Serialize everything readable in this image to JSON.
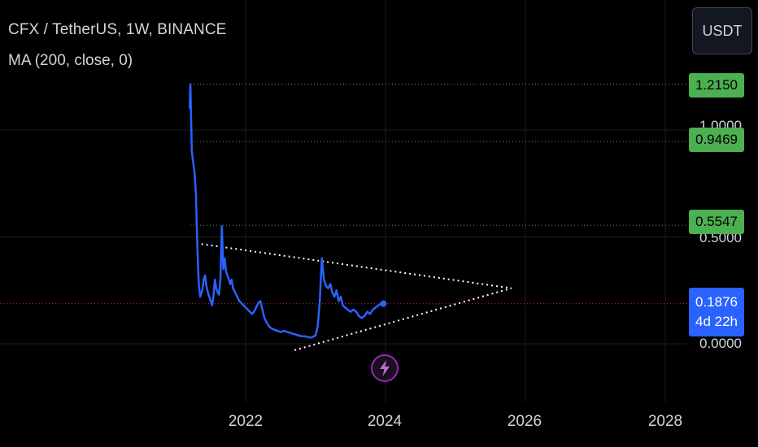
{
  "header": {
    "symbol_title": "CFX / TetherUS, 1W, BINANCE",
    "indicator": "MA (200, close, 0)"
  },
  "currency_button": {
    "label": "USDT"
  },
  "price_scale": {
    "levels": [
      "1.2150",
      "0.9469",
      "0.5547"
    ],
    "current_price": "0.1876",
    "countdown": "4d 22h",
    "partial_labels": [
      "1.0000",
      "0.5000",
      "0.0000"
    ]
  },
  "time_axis": {
    "labels": [
      "2022",
      "2024",
      "2026",
      "2028"
    ]
  },
  "colors": {
    "price_line": "#2962ff",
    "level_green": "#4caf50",
    "current_pink": "#e91e63",
    "trendline": "#ffffff",
    "flash_icon": "#9c27b0"
  },
  "icons": {
    "flash_badge": "lightning-icon"
  },
  "chart_data": {
    "type": "line",
    "title": "CFX / TetherUS, 1W, BINANCE",
    "xlabel": "",
    "ylabel": "",
    "x_ticks": [
      "2022",
      "2024",
      "2026",
      "2028"
    ],
    "series": [
      {
        "name": "CFX / TetherUS",
        "x": [
          2021.2,
          2021.21,
          2021.23,
          2021.25,
          2021.27,
          2021.29,
          2021.31,
          2021.33,
          2021.35,
          2021.38,
          2021.4,
          2021.42,
          2021.44,
          2021.46,
          2021.48,
          2021.5,
          2021.52,
          2021.54,
          2021.56,
          2021.58,
          2021.6,
          2021.62,
          2021.64,
          2021.66,
          2021.68,
          2021.7,
          2021.72,
          2021.74,
          2021.76,
          2021.78,
          2021.8,
          2021.82,
          2021.85,
          2021.88,
          2021.91,
          2021.94,
          2021.97,
          2022.0,
          2022.03,
          2022.06,
          2022.09,
          2022.12,
          2022.15,
          2022.18,
          2022.21,
          2022.24,
          2022.27,
          2022.3,
          2022.34,
          2022.38,
          2022.42,
          2022.46,
          2022.5,
          2022.55,
          2022.6,
          2022.65,
          2022.7,
          2022.75,
          2022.8,
          2022.85,
          2022.9,
          2022.95,
          2023.0,
          2023.03,
          2023.06,
          2023.09,
          2023.12,
          2023.15,
          2023.18,
          2023.21,
          2023.24,
          2023.27,
          2023.3,
          2023.33,
          2023.36,
          2023.39,
          2023.42,
          2023.46,
          2023.5,
          2023.54,
          2023.58,
          2023.62,
          2023.66,
          2023.7,
          2023.74,
          2023.78,
          2023.82,
          2023.86,
          2023.9,
          2023.94,
          2023.97
        ],
        "values": [
          1.1,
          1.215,
          0.9,
          0.85,
          0.8,
          0.7,
          0.45,
          0.28,
          0.22,
          0.25,
          0.3,
          0.32,
          0.27,
          0.24,
          0.22,
          0.2,
          0.18,
          0.22,
          0.3,
          0.26,
          0.24,
          0.23,
          0.3,
          0.55,
          0.35,
          0.4,
          0.34,
          0.32,
          0.3,
          0.28,
          0.3,
          0.26,
          0.24,
          0.22,
          0.2,
          0.19,
          0.18,
          0.17,
          0.16,
          0.15,
          0.14,
          0.15,
          0.17,
          0.19,
          0.2,
          0.16,
          0.12,
          0.1,
          0.08,
          0.07,
          0.065,
          0.06,
          0.055,
          0.06,
          0.055,
          0.05,
          0.045,
          0.04,
          0.035,
          0.035,
          0.03,
          0.03,
          0.04,
          0.08,
          0.2,
          0.4,
          0.3,
          0.27,
          0.26,
          0.28,
          0.24,
          0.22,
          0.25,
          0.2,
          0.22,
          0.18,
          0.17,
          0.16,
          0.15,
          0.16,
          0.15,
          0.13,
          0.12,
          0.13,
          0.15,
          0.14,
          0.16,
          0.17,
          0.18,
          0.19,
          0.1876
        ]
      }
    ],
    "horizontal_levels": [
      1.215,
      0.9469,
      0.5547,
      0.1876
    ],
    "trendlines": [
      {
        "x": [
          2021.3,
          2025.8
        ],
        "y": [
          0.47,
          0.26
        ]
      },
      {
        "x": [
          2022.7,
          2025.8
        ],
        "y": [
          -0.03,
          0.26
        ]
      }
    ],
    "xlim": [
      2021.0,
      2028.6
    ],
    "ylim": [
      -0.3,
      1.25
    ],
    "grid": true,
    "legend": "none"
  }
}
